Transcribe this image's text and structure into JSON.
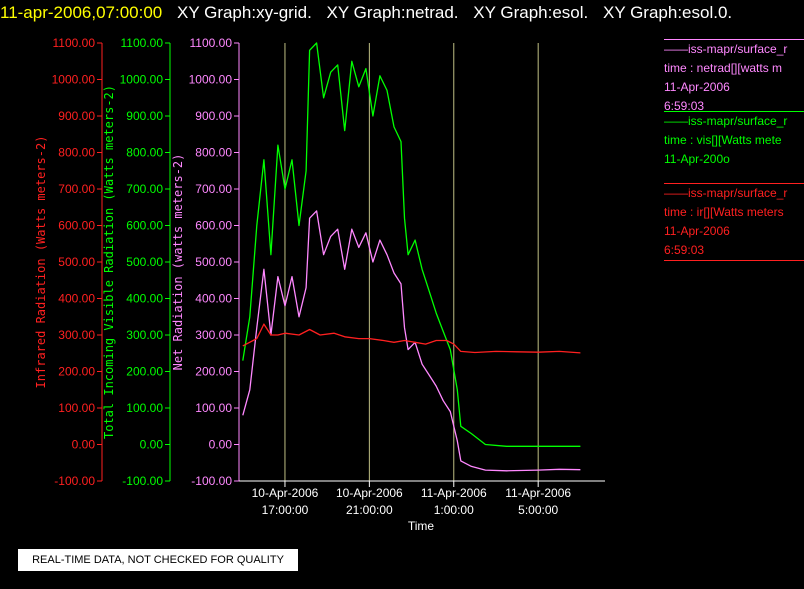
{
  "header": {
    "timestamp": "11-apr-2006,07:00:00",
    "graphs": [
      "XY Graph:xy-grid.",
      "XY Graph:netrad.",
      "XY Graph:esol.",
      "XY Graph:esol.0."
    ]
  },
  "legend": [
    {
      "source": "iss-mapr/surface_r",
      "field": "time : netrad[][watts m",
      "date": "11-Apr-2006",
      "time": "6:59:03",
      "color": "#ff88ff"
    },
    {
      "source": "iss-mapr/surface_r",
      "field": "time : vis[][Watts mete",
      "date": "11-Apr-200o",
      "time": "",
      "color": "#00ff00"
    },
    {
      "source": "iss-mapr/surface_r",
      "field": "time : ir[][Watts meters",
      "date": "11-Apr-2006",
      "time": "6:59:03",
      "color": "#ff2020"
    }
  ],
  "quality_note": "REAL-TIME DATA, NOT CHECKED FOR QUALITY",
  "colors": {
    "ir": "#ff2020",
    "vis": "#00ff00",
    "net": "#ff88ff",
    "grid": "#ffffb0",
    "axis": "#ffffff",
    "background": "#000000"
  },
  "chart_data": {
    "type": "line",
    "xlabel": "Time",
    "x_range": [
      "2006-04-10 14:55",
      "2006-04-11 08:10"
    ],
    "x_ticks": [
      {
        "time": "2006-04-10 17:00",
        "label": [
          "10-Apr-2006",
          "17:00:00"
        ]
      },
      {
        "time": "2006-04-10 21:00",
        "label": [
          "10-Apr-2006",
          "21:00:00"
        ]
      },
      {
        "time": "2006-04-11 01:00",
        "label": [
          "11-Apr-2006",
          "1:00:00"
        ]
      },
      {
        "time": "2006-04-11 05:00",
        "label": [
          "11-Apr-2006",
          "5:00:00"
        ]
      }
    ],
    "y_axes": [
      {
        "id": "ir",
        "label": "Infrared Radiation (Watts meters-2)",
        "color": "#ff2020",
        "ticks": [
          "1100.00",
          "1000.00",
          "900.00",
          "800.00",
          "700.00",
          "600.00",
          "500.00",
          "400.00",
          "300.00",
          "200.00",
          "100.00",
          "0.00",
          "-100.00"
        ],
        "ylim": [
          -100,
          1100
        ]
      },
      {
        "id": "vis",
        "label": "Total Incoming Visible Radiation (Watts meters-2)",
        "color": "#00ff00",
        "ticks": [
          "1100.00",
          "1000.00",
          "900.00",
          "800.00",
          "700.00",
          "600.00",
          "500.00",
          "400.00",
          "300.00",
          "200.00",
          "100.00",
          "0.00",
          "-100.00"
        ],
        "ylim": [
          -100,
          1100
        ]
      },
      {
        "id": "net",
        "label": "Net Radiation (watts meters-2)",
        "color": "#ff88ff",
        "ticks": [
          "1100.00",
          "1000.00",
          "900.00",
          "800.00",
          "700.00",
          "600.00",
          "500.00",
          "400.00",
          "300.00",
          "200.00",
          "100.00",
          "0.00",
          "-100.00"
        ],
        "ylim": [
          -100,
          1100
        ]
      }
    ],
    "grid": "vertical",
    "series": [
      {
        "id": "vis",
        "color": "#00ff00",
        "points": [
          [
            "2006-04-10 15:00",
            230
          ],
          [
            "2006-04-10 15:20",
            350
          ],
          [
            "2006-04-10 15:40",
            600
          ],
          [
            "2006-04-10 16:00",
            780
          ],
          [
            "2006-04-10 16:20",
            520
          ],
          [
            "2006-04-10 16:40",
            820
          ],
          [
            "2006-04-10 17:00",
            700
          ],
          [
            "2006-04-10 17:20",
            780
          ],
          [
            "2006-04-10 17:40",
            600
          ],
          [
            "2006-04-10 18:00",
            750
          ],
          [
            "2006-04-10 18:10",
            1080
          ],
          [
            "2006-04-10 18:30",
            1100
          ],
          [
            "2006-04-10 18:50",
            950
          ],
          [
            "2006-04-10 19:10",
            1020
          ],
          [
            "2006-04-10 19:30",
            1040
          ],
          [
            "2006-04-10 19:50",
            860
          ],
          [
            "2006-04-10 20:10",
            1050
          ],
          [
            "2006-04-10 20:30",
            980
          ],
          [
            "2006-04-10 20:50",
            1030
          ],
          [
            "2006-04-10 21:10",
            900
          ],
          [
            "2006-04-10 21:30",
            1010
          ],
          [
            "2006-04-10 21:50",
            970
          ],
          [
            "2006-04-10 22:10",
            870
          ],
          [
            "2006-04-10 22:30",
            830
          ],
          [
            "2006-04-10 22:40",
            620
          ],
          [
            "2006-04-10 22:50",
            520
          ],
          [
            "2006-04-10 23:10",
            560
          ],
          [
            "2006-04-10 23:30",
            480
          ],
          [
            "2006-04-10 23:50",
            420
          ],
          [
            "2006-04-11 00:10",
            360
          ],
          [
            "2006-04-11 00:30",
            310
          ],
          [
            "2006-04-11 00:50",
            260
          ],
          [
            "2006-04-11 01:10",
            150
          ],
          [
            "2006-04-11 01:20",
            50
          ],
          [
            "2006-04-11 01:50",
            30
          ],
          [
            "2006-04-11 02:30",
            0
          ],
          [
            "2006-04-11 03:30",
            -5
          ],
          [
            "2006-04-11 05:00",
            -5
          ],
          [
            "2006-04-11 07:00",
            -5
          ]
        ]
      },
      {
        "id": "net",
        "color": "#ff88ff",
        "points": [
          [
            "2006-04-10 15:00",
            80
          ],
          [
            "2006-04-10 15:20",
            150
          ],
          [
            "2006-04-10 15:40",
            320
          ],
          [
            "2006-04-10 16:00",
            480
          ],
          [
            "2006-04-10 16:20",
            300
          ],
          [
            "2006-04-10 16:40",
            460
          ],
          [
            "2006-04-10 17:00",
            380
          ],
          [
            "2006-04-10 17:20",
            460
          ],
          [
            "2006-04-10 17:40",
            350
          ],
          [
            "2006-04-10 18:00",
            430
          ],
          [
            "2006-04-10 18:10",
            620
          ],
          [
            "2006-04-10 18:30",
            640
          ],
          [
            "2006-04-10 18:50",
            520
          ],
          [
            "2006-04-10 19:10",
            570
          ],
          [
            "2006-04-10 19:30",
            590
          ],
          [
            "2006-04-10 19:50",
            480
          ],
          [
            "2006-04-10 20:10",
            590
          ],
          [
            "2006-04-10 20:30",
            540
          ],
          [
            "2006-04-10 20:50",
            580
          ],
          [
            "2006-04-10 21:10",
            500
          ],
          [
            "2006-04-10 21:30",
            560
          ],
          [
            "2006-04-10 21:50",
            520
          ],
          [
            "2006-04-10 22:10",
            470
          ],
          [
            "2006-04-10 22:30",
            440
          ],
          [
            "2006-04-10 22:40",
            320
          ],
          [
            "2006-04-10 22:50",
            260
          ],
          [
            "2006-04-10 23:10",
            280
          ],
          [
            "2006-04-10 23:30",
            220
          ],
          [
            "2006-04-10 23:50",
            190
          ],
          [
            "2006-04-11 00:10",
            160
          ],
          [
            "2006-04-11 00:30",
            120
          ],
          [
            "2006-04-11 00:50",
            90
          ],
          [
            "2006-04-11 01:10",
            10
          ],
          [
            "2006-04-11 01:20",
            -45
          ],
          [
            "2006-04-11 01:50",
            -60
          ],
          [
            "2006-04-11 02:30",
            -70
          ],
          [
            "2006-04-11 03:30",
            -72
          ],
          [
            "2006-04-11 05:00",
            -70
          ],
          [
            "2006-04-11 06:00",
            -68
          ],
          [
            "2006-04-11 07:00",
            -69
          ]
        ]
      },
      {
        "id": "ir",
        "color": "#ff2020",
        "points": [
          [
            "2006-04-10 15:00",
            270
          ],
          [
            "2006-04-10 15:40",
            290
          ],
          [
            "2006-04-10 16:00",
            330
          ],
          [
            "2006-04-10 16:20",
            300
          ],
          [
            "2006-04-10 16:40",
            300
          ],
          [
            "2006-04-10 17:00",
            305
          ],
          [
            "2006-04-10 17:40",
            300
          ],
          [
            "2006-04-10 18:10",
            315
          ],
          [
            "2006-04-10 18:40",
            300
          ],
          [
            "2006-04-10 19:20",
            305
          ],
          [
            "2006-04-10 19:50",
            295
          ],
          [
            "2006-04-10 20:30",
            290
          ],
          [
            "2006-04-10 21:00",
            290
          ],
          [
            "2006-04-10 21:40",
            285
          ],
          [
            "2006-04-10 22:10",
            280
          ],
          [
            "2006-04-10 22:40",
            285
          ],
          [
            "2006-04-10 23:10",
            280
          ],
          [
            "2006-04-10 23:40",
            275
          ],
          [
            "2006-04-11 00:10",
            285
          ],
          [
            "2006-04-11 00:40",
            285
          ],
          [
            "2006-04-11 01:00",
            275
          ],
          [
            "2006-04-11 01:20",
            255
          ],
          [
            "2006-04-11 02:00",
            252
          ],
          [
            "2006-04-11 03:00",
            255
          ],
          [
            "2006-04-11 04:00",
            254
          ],
          [
            "2006-04-11 05:00",
            253
          ],
          [
            "2006-04-11 06:00",
            255
          ],
          [
            "2006-04-11 07:00",
            251
          ]
        ]
      }
    ]
  }
}
